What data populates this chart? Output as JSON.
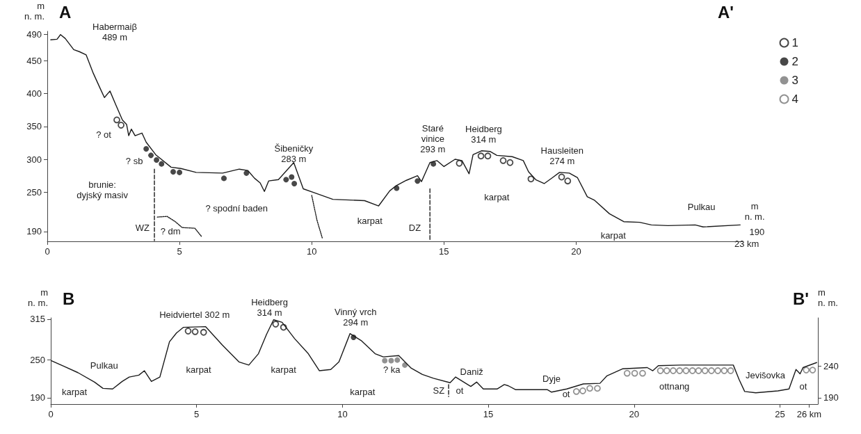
{
  "chart_data": [
    {
      "type": "line",
      "title": "A",
      "subtitle": "A'",
      "ylabel": "m\nn. m.",
      "xlim": [
        0,
        26.3
      ],
      "xticks": [
        0,
        5,
        10,
        15,
        20
      ],
      "ylim": [
        175,
        495
      ],
      "yticks": [
        190,
        250,
        300,
        350,
        400,
        450,
        490
      ],
      "grid": false,
      "legend": "right",
      "series": [
        {
          "color": "#1a1a1a",
          "line_style": "solid",
          "x": [
            0.13,
            0.37,
            0.5,
            0.68,
            1.0,
            1.21,
            1.47,
            1.74,
            2.0,
            2.16,
            2.37,
            2.58,
            2.84,
            3.0,
            3.08,
            3.18,
            3.32,
            3.58,
            3.74,
            4.1,
            4.68,
            5.05,
            5.63,
            6.63,
            7.26,
            7.58,
            7.84,
            8.05,
            8.21,
            8.37,
            8.74,
            9.32,
            9.68,
            10.1,
            10.8,
            12.0,
            12.53,
            12.95,
            13.2,
            13.58,
            14.0,
            14.15,
            14.47,
            14.74,
            15.0,
            15.42,
            15.68,
            15.95,
            16.1,
            16.42,
            16.74,
            17.0,
            17.58,
            18.0,
            18.2,
            18.47,
            18.79,
            19.1,
            19.37,
            19.74,
            20.05,
            20.42,
            20.68,
            21.26,
            21.8,
            22.4,
            22.84,
            23.47,
            24.5,
            24.8,
            26.2
          ],
          "values": [
            482,
            483,
            490,
            484,
            467,
            464,
            459,
            431,
            408,
            394,
            404,
            384,
            360,
            353,
            336,
            346,
            336,
            340,
            326,
            307,
            288,
            286,
            280,
            279,
            285,
            283,
            271,
            264,
            251,
            267,
            269,
            295,
            255,
            249,
            239,
            237,
            229,
            252,
            260,
            268,
            275,
            266,
            295,
            298,
            289,
            300,
            298,
            278,
            307,
            313,
            312,
            306,
            304,
            298,
            281,
            269,
            263,
            272,
            280,
            279,
            272,
            243,
            238,
            217,
            205,
            204,
            200,
            199,
            200,
            197,
            200
          ]
        },
        {
          "color": "#1a1a1a",
          "line_style": "dashed",
          "x": [
            4.05,
            4.05
          ],
          "values": [
            285,
            176
          ]
        },
        {
          "color": "#1a1a1a",
          "line_style": "dashed",
          "x": [
            14.47,
            14.47
          ],
          "values": [
            255,
            176
          ]
        },
        {
          "color": "#1a1a1a",
          "line_style": "dotted",
          "x": [
            4.16,
            4.53,
            4.84,
            5.1,
            5.58,
            5.84
          ],
          "values": [
            212,
            213,
            205,
            196,
            195,
            182
          ]
        },
        {
          "color": "#1a1a1a",
          "line_style": "dotted",
          "x": [
            10.0,
            10.2,
            10.4
          ],
          "values": [
            245,
            207,
            180
          ]
        },
        {
          "type": "scatter",
          "name": "1",
          "color": "#1a1a1a",
          "marker": "circle",
          "x": [
            2.63,
            2.79,
            15.58,
            16.4,
            16.66,
            17.24,
            17.5,
            18.29,
            19.45,
            19.68
          ],
          "values": [
            360,
            352,
            294,
            305,
            305,
            298,
            295,
            270,
            273,
            267
          ]
        },
        {
          "type": "scatter",
          "name": "2",
          "color": "#1a1a1a",
          "marker": "circle",
          "x": [
            3.74,
            3.92,
            4.13,
            4.32,
            4.76,
            5.0,
            6.68,
            7.53,
            9.03,
            9.24,
            9.34,
            13.21,
            14.0,
            14.6
          ],
          "values": [
            316,
            306,
            299,
            293,
            281,
            280,
            271,
            279,
            269,
            273,
            263,
            256,
            267,
            293
          ]
        },
        {
          "type": "scatter",
          "name": "3",
          "color": "#777777",
          "marker": "circle"
        },
        {
          "type": "scatter",
          "name": "4",
          "color": "#777777",
          "marker": "circle"
        }
      ],
      "annotations": [
        "Habermaiβ\n489 m",
        "? ot",
        "? sb",
        "brunie:\ndyjský masiv",
        "WZ",
        "? dm",
        "? spodní baden",
        "Šibeničky\n283 m",
        "karpat",
        "DZ",
        "Staré\nvinice\n293 m",
        "Heidberg\n314 m",
        "karpat",
        "Hausleiten\n274 m",
        "Pulkau",
        "karpat",
        "23 km",
        "m\nn. m.",
        "190"
      ]
    },
    {
      "type": "line",
      "title": "B",
      "subtitle": "B'",
      "ylabel": "m\nn. m.",
      "y2label": "m\nn. m.",
      "xlim": [
        0,
        26.3
      ],
      "xticks": [
        0,
        5,
        10,
        15,
        20,
        25,
        {
          "value": 26,
          "label": "26 km"
        }
      ],
      "ylim": [
        180,
        317
      ],
      "yticks": [
        190,
        250,
        315
      ],
      "y2lim": [
        180,
        317
      ],
      "y2ticks": [
        190,
        240
      ],
      "grid": false,
      "series": [
        {
          "color": "#1a1a1a",
          "line_style": "solid",
          "x": [
            0.02,
            0.45,
            0.93,
            1.5,
            1.79,
            2.12,
            2.45,
            2.69,
            3.02,
            3.21,
            3.45,
            3.74,
            4.07,
            4.31,
            4.55,
            5.31,
            5.88,
            6.45,
            6.79,
            7.12,
            7.4,
            7.64,
            7.93,
            8.36,
            8.83,
            9.21,
            9.6,
            9.88,
            10.26,
            10.64,
            11.12,
            11.4,
            11.93,
            12.36,
            12.74,
            13.12,
            13.69,
            13.88,
            14.4,
            14.6,
            14.83,
            15.3,
            15.55,
            15.69,
            15.93,
            17.02,
            17.17,
            17.69,
            18.26,
            18.83,
            19.07,
            19.6,
            20.45,
            20.64,
            20.83,
            21.6,
            23.4,
            23.6,
            23.79,
            24.17,
            24.93,
            25.31,
            25.55,
            25.69,
            25.79,
            26.26
          ],
          "values": [
            249,
            240,
            230,
            215,
            205,
            204,
            216,
            223,
            226,
            233,
            216,
            223,
            279,
            293,
            302,
            303,
            274,
            247,
            242,
            260,
            291,
            314,
            310,
            284,
            260,
            233,
            235,
            247,
            292,
            281,
            260,
            255,
            257,
            237,
            227,
            221,
            214,
            223,
            208,
            215,
            204,
            204,
            211,
            209,
            203,
            203,
            199,
            204,
            212,
            213,
            225,
            236,
            238,
            233,
            241,
            242,
            242,
            219,
            200,
            198,
            201,
            204,
            235,
            228,
            238,
            246
          ]
        },
        {
          "color": "#1a1a1a",
          "line_style": "dashed",
          "x": [
            13.64,
            13.64
          ],
          "values": [
            211,
            192
          ]
        },
        {
          "type": "scatter",
          "color": "#1a1a1a",
          "marker": "circle",
          "x": [
            4.71,
            4.95,
            5.24,
            7.71,
            7.98
          ],
          "values": [
            296,
            295,
            294,
            307,
            302
          ]
        },
        {
          "type": "scatter",
          "color": "#1a1a1a",
          "marker": "circle",
          "x": [
            10.38
          ],
          "values": [
            286
          ]
        },
        {
          "type": "scatter",
          "color": "#777777",
          "marker": "circle",
          "x": [
            11.45,
            11.67,
            11.88,
            12.14
          ],
          "values": [
            249,
            249,
            250,
            242
          ]
        },
        {
          "type": "scatter",
          "color": "#777777",
          "marker": "circle",
          "x": [
            18.02,
            18.24,
            18.48,
            18.74,
            19.76,
            20.02,
            20.29,
            20.9,
            21.12,
            21.34,
            21.56,
            21.78,
            22.0,
            22.21,
            22.43,
            22.65,
            22.87,
            23.09,
            23.31,
            25.9,
            26.12
          ],
          "values": [
            200,
            201,
            205,
            205,
            229,
            229,
            229,
            233,
            233,
            233,
            233,
            233,
            233,
            233,
            233,
            233,
            233,
            233,
            233,
            234,
            234
          ]
        }
      ],
      "annotations": [
        "Pulkau",
        "karpat",
        "Heidviertel 302 m",
        "Heidberg\n314 m",
        "Vinný vrch\n294 m",
        "karpat",
        "karpat",
        "karpat",
        "? ka",
        "SZ",
        "ot",
        "Daniž",
        "Dyje",
        "ot",
        "ottnang",
        "Jevišovka",
        "ot"
      ]
    }
  ]
}
